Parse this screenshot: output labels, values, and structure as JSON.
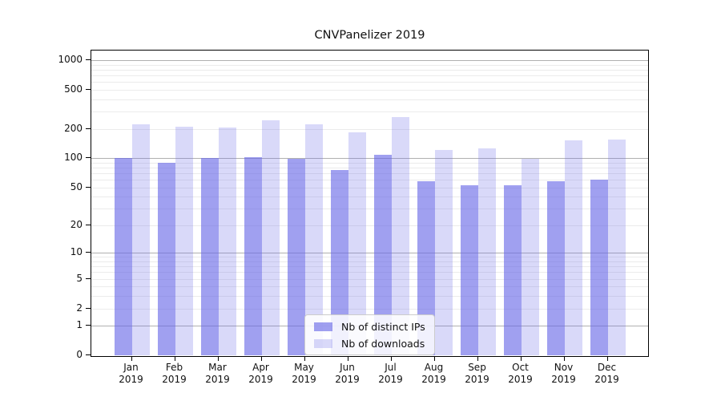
{
  "title": "CNVPanelizer 2019",
  "chart_data": {
    "type": "bar",
    "title": "CNVPanelizer 2019",
    "categories": [
      "Jan",
      "Feb",
      "Mar",
      "Apr",
      "May",
      "Jun",
      "Jul",
      "Aug",
      "Sep",
      "Oct",
      "Nov",
      "Dec"
    ],
    "xtick_second_line": "2019",
    "series": [
      {
        "name": "Nb of distinct IPs",
        "color": "rgba(102,102,230,0.62)",
        "swatch_hex": "#a2a2ef",
        "values": [
          100,
          90,
          100,
          103,
          98,
          76,
          109,
          58,
          53,
          53,
          58,
          60
        ]
      },
      {
        "name": "Nb of downloads",
        "color": "rgba(102,102,230,0.25)",
        "swatch_hex": "#d9d9f8",
        "values": [
          224,
          211,
          207,
          243,
          222,
          186,
          262,
          122,
          126,
          99,
          152,
          155
        ]
      }
    ],
    "xlabel": "",
    "ylabel": "",
    "yscale": "log1p",
    "yticks": [
      0,
      1,
      2,
      5,
      10,
      20,
      50,
      100,
      200,
      500,
      1000
    ],
    "ylim": [
      0,
      1258
    ],
    "grid": {
      "major_lines": [
        1,
        10,
        100,
        1000
      ],
      "minor_lines": [
        2,
        3,
        4,
        5,
        6,
        7,
        8,
        9,
        20,
        30,
        40,
        50,
        60,
        70,
        80,
        90,
        200,
        300,
        400,
        500,
        600,
        700,
        800,
        900
      ],
      "major_color": "#b0b0b0",
      "minor_color": "#ebebeb"
    },
    "legend": {
      "position": "lower center"
    }
  },
  "colors": {
    "background": "#ffffff",
    "axis": "#000000",
    "text": "#111111"
  }
}
